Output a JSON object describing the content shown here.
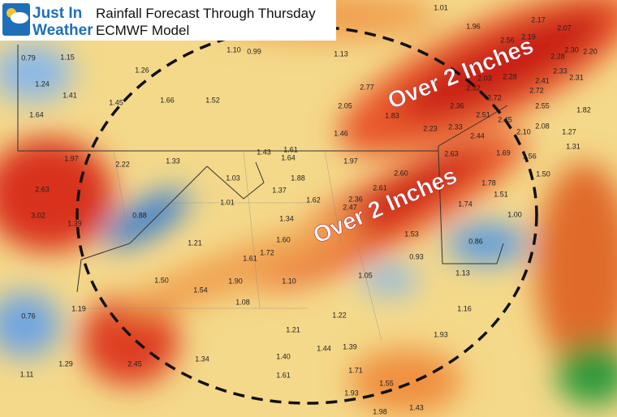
{
  "header": {
    "title": "Rainfall Forecast Through Thursday",
    "subtitle": "ECMWF Model"
  },
  "logo": {
    "line1": "Just In",
    "line2": "Weather"
  },
  "annotations": [
    "Over 2 Inches",
    "Over 2 Inches"
  ],
  "labels": [
    "1.01",
    "1.96",
    "2.17",
    "2.07",
    "2.56",
    "2.19",
    "2.28",
    "2.30",
    "2.20",
    "0.79",
    "1.15",
    "1.10",
    "0.99",
    "1.13",
    "1.26",
    "2.33",
    "2.31",
    "2.28",
    "2.03",
    "2.41",
    "1.24",
    "2.77",
    "2.32",
    "2.72",
    "1.41",
    "1.45",
    "1.66",
    "1.52",
    "2.05",
    "2.36",
    "2.72",
    "2.55",
    "1.82",
    "1.64",
    "1.83",
    "2.51",
    "2.45",
    "2.23",
    "2.33",
    "2.10",
    "2.08",
    "1.27",
    "1.46",
    "2.44",
    "1.31",
    "1.43",
    "1.61",
    "1.64",
    "2.63",
    "1.69",
    "1.56",
    "1.97",
    "2.22",
    "1.33",
    "1.88",
    "1.97",
    "2.60",
    "1.03",
    "1.78",
    "1.50",
    "2.63",
    "1.37",
    "2.61",
    "1.01",
    "1.62",
    "2.36",
    "2.47",
    "1.74",
    "1.51",
    "1.34",
    "3.02",
    "1.39",
    "0.88",
    "1.00",
    "1.53",
    "1.60",
    "1.21",
    "1.72",
    "1.61",
    "0.93",
    "0.86",
    "1.50",
    "1.90",
    "1.10",
    "1.05",
    "1.13",
    "1.54",
    "1.08",
    "1.19",
    "0.76",
    "1.22",
    "1.16",
    "1.21",
    "1.44",
    "1.39",
    "1.93",
    "1.34",
    "1.40",
    "2.45",
    "1.29",
    "1.11",
    "1.61",
    "1.71",
    "1.55",
    "1.93",
    "1.98",
    "1.43"
  ]
}
